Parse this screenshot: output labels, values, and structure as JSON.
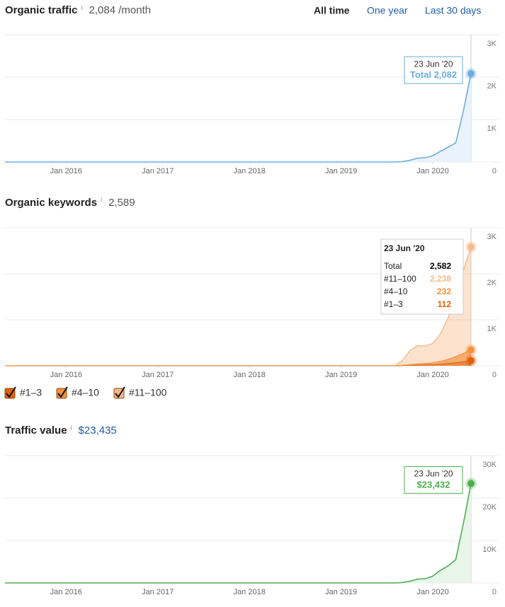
{
  "time_range": {
    "options": [
      "All time",
      "One year",
      "Last 30 days"
    ]
  },
  "info_icon": "i",
  "chart_data": [
    {
      "type": "line",
      "title": "Organic traffic",
      "summary": "2,084 /month",
      "color": "#6aaee0",
      "area_color": "#eaf3fb",
      "x": [
        "2015-05",
        "2019-08",
        "2019-09",
        "2019-10",
        "2019-11",
        "2019-12",
        "2020-01",
        "2020-02",
        "2020-03",
        "2020-04",
        "2020-05",
        "2020-06"
      ],
      "values": [
        0,
        0,
        10,
        40,
        90,
        100,
        150,
        250,
        350,
        450,
        1200,
        2082
      ],
      "xlim": [
        "2015-05",
        "2020-06"
      ],
      "xticks": [
        {
          "value": "2016-01",
          "label": "Jan 2016"
        },
        {
          "value": "2017-01",
          "label": "Jan 2017"
        },
        {
          "value": "2018-01",
          "label": "Jan 2018"
        },
        {
          "value": "2019-01",
          "label": "Jan 2019"
        },
        {
          "value": "2020-01",
          "label": "Jan 2020"
        }
      ],
      "ylim": [
        0,
        3000
      ],
      "yticks": [
        0,
        {
          "value": 1000,
          "label": "1K"
        },
        {
          "value": 2000,
          "label": "2K"
        },
        {
          "value": 3000,
          "label": "3K"
        }
      ],
      "grid": true,
      "tooltip": {
        "date": "23 Jun '20",
        "label": "Total",
        "value": 2082,
        "value_label": "2,082"
      }
    },
    {
      "type": "stacked_area",
      "title": "Organic keywords",
      "summary": "2,589",
      "x": [
        "2015-05",
        "2019-08",
        "2019-09",
        "2019-10",
        "2019-11",
        "2019-12",
        "2020-01",
        "2020-02",
        "2020-03",
        "2020-04",
        "2020-05",
        "2020-06"
      ],
      "series": [
        {
          "name": "#1–3",
          "color": "#e0600a",
          "values": [
            0,
            0,
            5,
            10,
            15,
            20,
            25,
            35,
            50,
            70,
            90,
            112
          ]
        },
        {
          "name": "#4–10",
          "color": "#f5923e",
          "values": [
            0,
            0,
            5,
            15,
            25,
            30,
            40,
            60,
            90,
            130,
            180,
            232
          ]
        },
        {
          "name": "#11–100",
          "color": "#f8b98a",
          "values": [
            0,
            0,
            100,
            300,
            400,
            380,
            420,
            600,
            900,
            1300,
            1800,
            2238
          ]
        }
      ],
      "xlim": [
        "2015-05",
        "2020-06"
      ],
      "xticks": [
        {
          "value": "2016-01",
          "label": "Jan 2016"
        },
        {
          "value": "2017-01",
          "label": "Jan 2017"
        },
        {
          "value": "2018-01",
          "label": "Jan 2018"
        },
        {
          "value": "2019-01",
          "label": "Jan 2019"
        },
        {
          "value": "2020-01",
          "label": "Jan 2020"
        }
      ],
      "ylim": [
        0,
        3000
      ],
      "yticks": [
        0,
        {
          "value": 1000,
          "label": "1K"
        },
        {
          "value": 2000,
          "label": "2K"
        },
        {
          "value": 3000,
          "label": "3K"
        }
      ],
      "grid": true,
      "tooltip": {
        "date": "23 Jun '20",
        "rows": [
          {
            "label": "Total",
            "value": 2582,
            "value_label": "2,582",
            "color": "#000000"
          },
          {
            "label": "#11–100",
            "value": 2238,
            "value_label": "2,238",
            "color": "#f8b98a"
          },
          {
            "label": "#4–10",
            "value": 232,
            "value_label": "232",
            "color": "#f5923e"
          },
          {
            "label": "#1–3",
            "value": 112,
            "value_label": "112",
            "color": "#e0600a"
          }
        ]
      }
    },
    {
      "type": "line",
      "title": "Traffic value",
      "summary": "$23,435",
      "color": "#4caf50",
      "area_color": "#e8f5e9",
      "x": [
        "2015-05",
        "2019-08",
        "2019-09",
        "2019-10",
        "2019-11",
        "2019-12",
        "2020-01",
        "2020-02",
        "2020-03",
        "2020-04",
        "2020-05",
        "2020-06"
      ],
      "values": [
        0,
        0,
        100,
        400,
        900,
        1000,
        1600,
        3000,
        4000,
        5500,
        14000,
        23432
      ],
      "xlim": [
        "2015-05",
        "2020-06"
      ],
      "xticks": [
        {
          "value": "2016-01",
          "label": "Jan 2016"
        },
        {
          "value": "2017-01",
          "label": "Jan 2017"
        },
        {
          "value": "2018-01",
          "label": "Jan 2018"
        },
        {
          "value": "2019-01",
          "label": "Jan 2019"
        },
        {
          "value": "2020-01",
          "label": "Jan 2020"
        }
      ],
      "ylim": [
        0,
        30000
      ],
      "yticks": [
        0,
        {
          "value": 10000,
          "label": "10K"
        },
        {
          "value": 20000,
          "label": "20K"
        },
        {
          "value": 30000,
          "label": "30K"
        }
      ],
      "grid": true,
      "tooltip": {
        "date": "23 Jun '20",
        "value": 23432,
        "value_label": "$23,432"
      }
    }
  ]
}
